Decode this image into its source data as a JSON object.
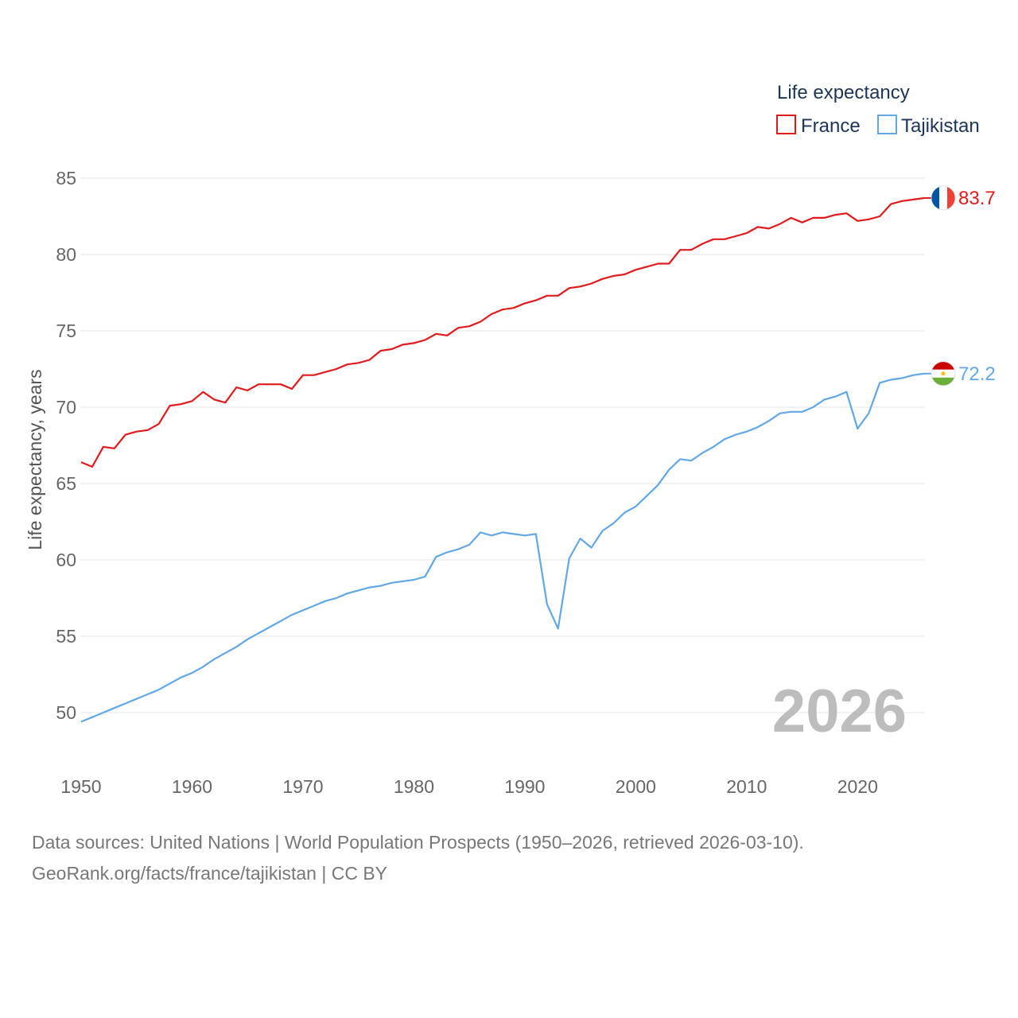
{
  "chart_data": {
    "type": "line",
    "title": "",
    "legend_title": "Life expectancy",
    "legend_position": "top-right",
    "ylabel": "Life expectancy, years",
    "xlabel": "",
    "xlim": [
      1950,
      2026
    ],
    "ylim": [
      47.5,
      86
    ],
    "x_ticks": [
      1950,
      1960,
      1970,
      1980,
      1990,
      2000,
      2010,
      2020
    ],
    "y_ticks": [
      50,
      55,
      60,
      65,
      70,
      75,
      80,
      85
    ],
    "current_year": "2026",
    "grid": true,
    "x": [
      1950,
      1951,
      1952,
      1953,
      1954,
      1955,
      1956,
      1957,
      1958,
      1959,
      1960,
      1961,
      1962,
      1963,
      1964,
      1965,
      1966,
      1967,
      1968,
      1969,
      1970,
      1971,
      1972,
      1973,
      1974,
      1975,
      1976,
      1977,
      1978,
      1979,
      1980,
      1981,
      1982,
      1983,
      1984,
      1985,
      1986,
      1987,
      1988,
      1989,
      1990,
      1991,
      1992,
      1993,
      1994,
      1995,
      1996,
      1997,
      1998,
      1999,
      2000,
      2001,
      2002,
      2003,
      2004,
      2005,
      2006,
      2007,
      2008,
      2009,
      2010,
      2011,
      2012,
      2013,
      2014,
      2015,
      2016,
      2017,
      2018,
      2019,
      2020,
      2021,
      2022,
      2023,
      2024,
      2025,
      2026
    ],
    "series": [
      {
        "name": "France",
        "color": "#e31a1c",
        "end_label": "83.7",
        "flag": "flag-france-icon",
        "values": [
          66.4,
          66.1,
          67.4,
          67.3,
          68.2,
          68.4,
          68.5,
          68.9,
          70.1,
          70.2,
          70.4,
          71.0,
          70.5,
          70.3,
          71.3,
          71.1,
          71.5,
          71.5,
          71.5,
          71.2,
          72.1,
          72.1,
          72.3,
          72.5,
          72.8,
          72.9,
          73.1,
          73.7,
          73.8,
          74.1,
          74.2,
          74.4,
          74.8,
          74.7,
          75.2,
          75.3,
          75.6,
          76.1,
          76.4,
          76.5,
          76.8,
          77.0,
          77.3,
          77.3,
          77.8,
          77.9,
          78.1,
          78.4,
          78.6,
          78.7,
          79.0,
          79.2,
          79.4,
          79.4,
          80.3,
          80.3,
          80.7,
          81.0,
          81.0,
          81.2,
          81.4,
          81.8,
          81.7,
          82.0,
          82.4,
          82.1,
          82.4,
          82.4,
          82.6,
          82.7,
          82.2,
          82.3,
          82.5,
          83.3,
          83.5,
          83.6,
          83.7
        ]
      },
      {
        "name": "Tajikistan",
        "color": "#62a8e6",
        "end_label": "72.2",
        "flag": "flag-tajikistan-icon",
        "values": [
          49.4,
          49.7,
          50.0,
          50.3,
          50.6,
          50.9,
          51.2,
          51.5,
          51.9,
          52.3,
          52.6,
          53.0,
          53.5,
          53.9,
          54.3,
          54.8,
          55.2,
          55.6,
          56.0,
          56.4,
          56.7,
          57.0,
          57.3,
          57.5,
          57.8,
          58.0,
          58.2,
          58.3,
          58.5,
          58.6,
          58.7,
          58.9,
          60.2,
          60.5,
          60.7,
          61.0,
          61.8,
          61.6,
          61.8,
          61.7,
          61.6,
          61.7,
          57.1,
          55.5,
          60.1,
          61.4,
          60.8,
          61.9,
          62.4,
          63.1,
          63.5,
          64.2,
          64.9,
          65.9,
          66.6,
          66.5,
          67.0,
          67.4,
          67.9,
          68.2,
          68.4,
          68.7,
          69.1,
          69.6,
          69.7,
          69.7,
          70.0,
          70.5,
          70.7,
          71.0,
          68.6,
          69.6,
          71.6,
          71.8,
          71.9,
          72.1,
          72.2
        ]
      }
    ]
  },
  "footer": {
    "sources": "Data sources: United Nations | World Population Prospects (1950–2026, retrieved 2026-03-10).",
    "credit": "GeoRank.org/facts/france/tajikistan | CC BY"
  }
}
